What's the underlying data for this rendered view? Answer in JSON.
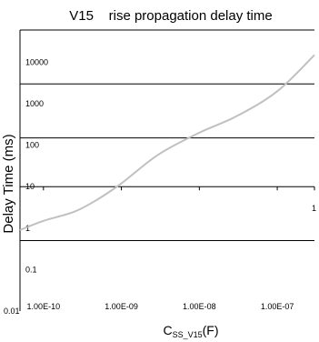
{
  "chart_data": {
    "type": "line",
    "title": "V15    rise propagation delay time",
    "xlabel": {
      "main": "C",
      "subscript": "SS_V15",
      "unit": "(F)"
    },
    "ylabel": "Delay Time (ms)",
    "x_scale": "log",
    "y_scale": "log",
    "xlim": [
      5e-11,
      3e-07
    ],
    "ylim": [
      0.01,
      60000
    ],
    "x_ticks": [
      {
        "value": 1e-10,
        "label": "1.00E-10"
      },
      {
        "value": 1e-09,
        "label": "1.00E-09"
      },
      {
        "value": 1e-08,
        "label": "1.00E-08"
      },
      {
        "value": 1e-07,
        "label": "1.00E-07"
      }
    ],
    "y_ticks": [
      {
        "value": 10000,
        "label": "10000"
      },
      {
        "value": 1000,
        "label": "1000"
      },
      {
        "value": 100,
        "label": "100"
      },
      {
        "value": 10,
        "label": "10"
      },
      {
        "value": 1,
        "label": "1"
      },
      {
        "value": 0.1,
        "label": "0.1"
      },
      {
        "value": 0.01,
        "label": "0.01"
      }
    ],
    "extra_labels": [
      {
        "text": "1",
        "x": 3e-07,
        "y": 3
      }
    ],
    "gridlines_y": [
      3000,
      150,
      10,
      0.5
    ],
    "series": [
      {
        "color": "#c0c0c0",
        "points": [
          {
            "x": 5e-11,
            "y": 0.9
          },
          {
            "x": 1e-10,
            "y": 1.5
          },
          {
            "x": 2.5e-10,
            "y": 2.5
          },
          {
            "x": 5e-10,
            "y": 5
          },
          {
            "x": 1e-09,
            "y": 12
          },
          {
            "x": 3e-09,
            "y": 60
          },
          {
            "x": 1e-08,
            "y": 200
          },
          {
            "x": 3e-08,
            "y": 500
          },
          {
            "x": 1e-07,
            "y": 2000
          },
          {
            "x": 3e-07,
            "y": 15000
          }
        ]
      }
    ]
  }
}
